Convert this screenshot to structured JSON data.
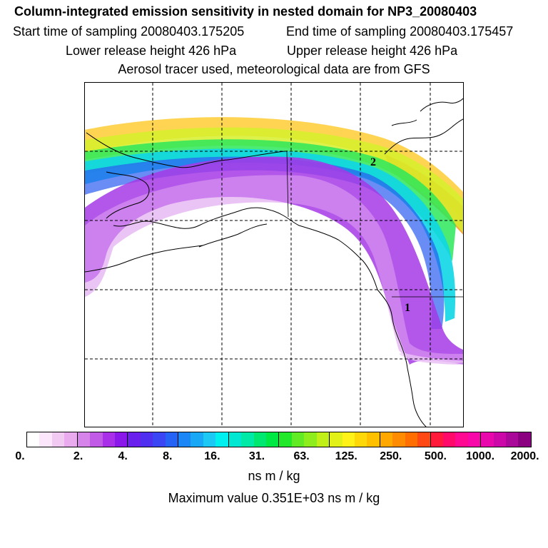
{
  "header": {
    "title": "Column-integrated emission sensitivity in nested domain for NP3_20080403",
    "start_time": "Start time of sampling 20080403.175205",
    "end_time": "End time of sampling 20080403.175457",
    "lower_release": "Lower release height  426 hPa",
    "upper_release": "Upper release height  426 hPa",
    "tracer_info": "Aerosol tracer used, meteorological data are from GFS"
  },
  "map": {
    "point_labels": [
      "2",
      "1"
    ]
  },
  "legend": {
    "colors": [
      "#ffffff",
      "#fbe6fb",
      "#f2c9f3",
      "#e9aaee",
      "#d683ea",
      "#c15ae7",
      "#a930e8",
      "#8b18ea",
      "#6a20ec",
      "#4f2ff0",
      "#3a46f3",
      "#2463f5",
      "#1b86f6",
      "#18a8f5",
      "#1cc9f4",
      "#00f0f0",
      "#00e8d2",
      "#00eaa7",
      "#00e870",
      "#00e844",
      "#22e82a",
      "#62ea24",
      "#8eed1c",
      "#c0f018",
      "#e2f218",
      "#fff218",
      "#ffd80a",
      "#ffc000",
      "#ffa800",
      "#ff8c00",
      "#ff6e00",
      "#ff4814",
      "#ff1a3c",
      "#ff0a6a",
      "#ff0892",
      "#f808a8",
      "#e808ac",
      "#cc08a8",
      "#aa0898",
      "#8a0080"
    ],
    "ticks": [
      "0.",
      "2.",
      "4.",
      "8.",
      "16.",
      "31.",
      "63.",
      "125.",
      "250.",
      "500.",
      "1000.",
      "2000."
    ],
    "units": "ns m / kg",
    "max_value": "Maximum value  0.351E+03 ns m / kg"
  }
}
